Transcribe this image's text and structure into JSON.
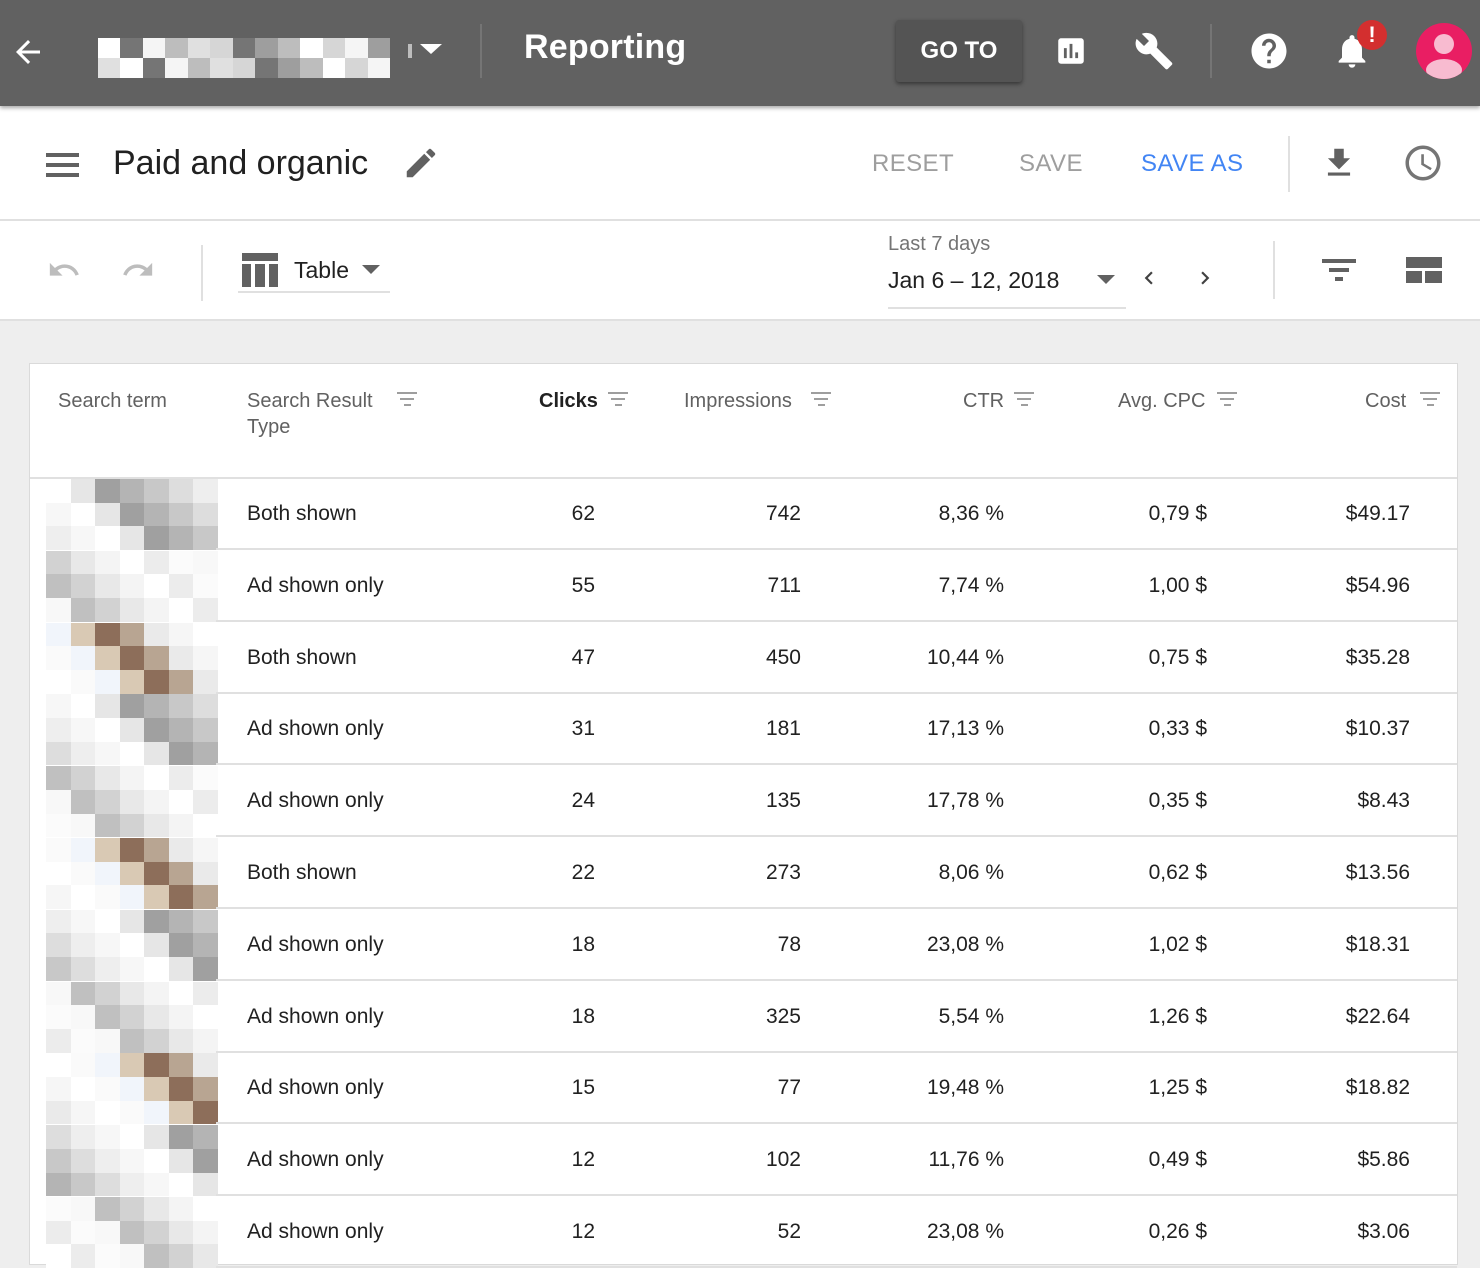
{
  "appbar": {
    "title": "Reporting",
    "goto_label": "GO TO",
    "alert_badge": "!",
    "account_name_redacted": true
  },
  "titlebar": {
    "report_name": "Paid and organic",
    "reset_label": "RESET",
    "save_label": "SAVE",
    "save_as_label": "SAVE AS"
  },
  "toolbar": {
    "view_label": "Table",
    "date_caption": "Last 7 days",
    "date_range": "Jan 6 – 12, 2018"
  },
  "table": {
    "headers": {
      "search_term": "Search term",
      "search_result_type": "Search Result Type",
      "clicks": "Clicks",
      "impressions": "Impressions",
      "ctr": "CTR",
      "avg_cpc": "Avg. CPC",
      "cost": "Cost"
    },
    "rows": [
      {
        "type": "Both shown",
        "clicks": "62",
        "impressions": "742",
        "ctr": "8,36 %",
        "avg_cpc": "0,79 $",
        "cost": "$49.17"
      },
      {
        "type": "Ad shown only",
        "clicks": "55",
        "impressions": "711",
        "ctr": "7,74 %",
        "avg_cpc": "1,00 $",
        "cost": "$54.96"
      },
      {
        "type": "Both shown",
        "clicks": "47",
        "impressions": "450",
        "ctr": "10,44 %",
        "avg_cpc": "0,75 $",
        "cost": "$35.28"
      },
      {
        "type": "Ad shown only",
        "clicks": "31",
        "impressions": "181",
        "ctr": "17,13 %",
        "avg_cpc": "0,33 $",
        "cost": "$10.37"
      },
      {
        "type": "Ad shown only",
        "clicks": "24",
        "impressions": "135",
        "ctr": "17,78 %",
        "avg_cpc": "0,35 $",
        "cost": "$8.43"
      },
      {
        "type": "Both shown",
        "clicks": "22",
        "impressions": "273",
        "ctr": "8,06 %",
        "avg_cpc": "0,62 $",
        "cost": "$13.56"
      },
      {
        "type": "Ad shown only",
        "clicks": "18",
        "impressions": "78",
        "ctr": "23,08 %",
        "avg_cpc": "1,02 $",
        "cost": "$18.31"
      },
      {
        "type": "Ad shown only",
        "clicks": "18",
        "impressions": "325",
        "ctr": "5,54 %",
        "avg_cpc": "1,26 $",
        "cost": "$22.64"
      },
      {
        "type": "Ad shown only",
        "clicks": "15",
        "impressions": "77",
        "ctr": "19,48 %",
        "avg_cpc": "1,25 $",
        "cost": "$18.82"
      },
      {
        "type": "Ad shown only",
        "clicks": "12",
        "impressions": "102",
        "ctr": "11,76 %",
        "avg_cpc": "0,49 $",
        "cost": "$5.86"
      },
      {
        "type": "Ad shown only",
        "clicks": "12",
        "impressions": "52",
        "ctr": "23,08 %",
        "avg_cpc": "0,26 $",
        "cost": "$3.06"
      }
    ]
  },
  "colors": {
    "appbar_bg": "#616161",
    "accent": "#4285f4",
    "avatar": "#e91e63",
    "badge": "#d32f2f"
  },
  "icons": [
    "back-arrow-icon",
    "account-dropdown-icon",
    "reports-icon",
    "wrench-icon",
    "help-icon",
    "notifications-bell-icon",
    "account-avatar-icon",
    "menu-icon",
    "edit-pencil-icon",
    "download-icon",
    "history-clock-icon",
    "undo-icon",
    "redo-icon",
    "table-view-icon",
    "chevron-left-icon",
    "chevron-right-icon",
    "filter-icon",
    "column-layout-icon"
  ]
}
